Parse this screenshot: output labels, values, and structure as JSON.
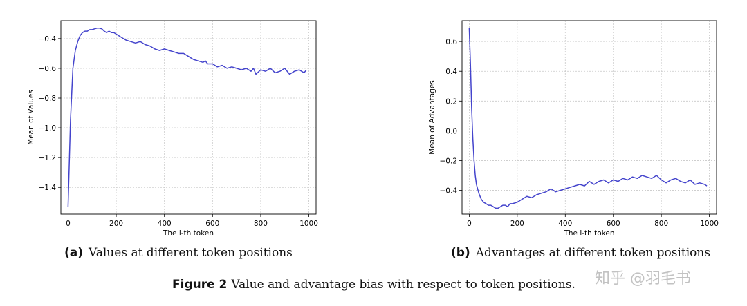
{
  "chart_data": [
    {
      "type": "line",
      "xlabel": "The i-th token",
      "ylabel": "Mean of Values",
      "xlim": [
        -30,
        1030
      ],
      "ylim": [
        -1.58,
        -0.28
      ],
      "xticks": [
        0,
        200,
        400,
        600,
        800,
        1000
      ],
      "yticks": [
        -1.4,
        -1.2,
        -1.0,
        -0.8,
        -0.6,
        -0.4
      ],
      "grid": true,
      "color": "#4444cc",
      "x": [
        0,
        10,
        20,
        30,
        40,
        50,
        60,
        70,
        80,
        90,
        100,
        110,
        120,
        130,
        140,
        150,
        160,
        170,
        180,
        190,
        200,
        220,
        240,
        260,
        280,
        300,
        320,
        340,
        360,
        380,
        400,
        420,
        440,
        460,
        480,
        500,
        520,
        540,
        560,
        570,
        580,
        600,
        620,
        640,
        660,
        680,
        700,
        720,
        740,
        760,
        770,
        780,
        800,
        820,
        840,
        860,
        880,
        900,
        920,
        940,
        960,
        980,
        990
      ],
      "y": [
        -1.53,
        -0.95,
        -0.6,
        -0.48,
        -0.42,
        -0.38,
        -0.36,
        -0.35,
        -0.35,
        -0.34,
        -0.34,
        -0.335,
        -0.33,
        -0.33,
        -0.335,
        -0.35,
        -0.36,
        -0.35,
        -0.36,
        -0.36,
        -0.37,
        -0.39,
        -0.41,
        -0.42,
        -0.43,
        -0.42,
        -0.44,
        -0.45,
        -0.47,
        -0.48,
        -0.47,
        -0.48,
        -0.49,
        -0.5,
        -0.5,
        -0.52,
        -0.54,
        -0.55,
        -0.56,
        -0.55,
        -0.57,
        -0.57,
        -0.59,
        -0.58,
        -0.6,
        -0.59,
        -0.6,
        -0.61,
        -0.6,
        -0.62,
        -0.6,
        -0.64,
        -0.61,
        -0.62,
        -0.6,
        -0.63,
        -0.62,
        -0.6,
        -0.64,
        -0.62,
        -0.61,
        -0.63,
        -0.61
      ]
    },
    {
      "type": "line",
      "xlabel": "The i-th token",
      "ylabel": "Mean of Advantages",
      "xlim": [
        -30,
        1030
      ],
      "ylim": [
        -0.56,
        0.74
      ],
      "xticks": [
        0,
        200,
        400,
        600,
        800,
        1000
      ],
      "yticks": [
        -0.4,
        -0.2,
        0.0,
        0.2,
        0.4,
        0.6
      ],
      "grid": true,
      "color": "#4444cc",
      "x": [
        0,
        5,
        10,
        15,
        20,
        25,
        30,
        40,
        50,
        60,
        70,
        80,
        90,
        100,
        110,
        120,
        130,
        140,
        150,
        160,
        170,
        180,
        200,
        220,
        240,
        260,
        280,
        300,
        320,
        340,
        360,
        380,
        400,
        420,
        440,
        460,
        480,
        500,
        520,
        540,
        560,
        580,
        600,
        620,
        640,
        660,
        680,
        700,
        720,
        740,
        760,
        780,
        800,
        820,
        840,
        860,
        880,
        900,
        920,
        940,
        960,
        980,
        990
      ],
      "y": [
        0.69,
        0.45,
        0.15,
        -0.05,
        -0.2,
        -0.3,
        -0.36,
        -0.42,
        -0.46,
        -0.48,
        -0.49,
        -0.5,
        -0.5,
        -0.51,
        -0.52,
        -0.52,
        -0.51,
        -0.5,
        -0.5,
        -0.51,
        -0.49,
        -0.49,
        -0.48,
        -0.46,
        -0.44,
        -0.45,
        -0.43,
        -0.42,
        -0.41,
        -0.39,
        -0.41,
        -0.4,
        -0.39,
        -0.38,
        -0.37,
        -0.36,
        -0.37,
        -0.34,
        -0.36,
        -0.34,
        -0.33,
        -0.35,
        -0.33,
        -0.34,
        -0.32,
        -0.33,
        -0.31,
        -0.32,
        -0.3,
        -0.31,
        -0.32,
        -0.3,
        -0.33,
        -0.35,
        -0.33,
        -0.32,
        -0.34,
        -0.35,
        -0.33,
        -0.36,
        -0.35,
        -0.36,
        -0.37
      ]
    }
  ],
  "subcaptions": [
    {
      "label": "(a)",
      "text": "Values at different token positions"
    },
    {
      "label": "(b)",
      "text": "Advantages at different token positions"
    }
  ],
  "caption": {
    "label": "Figure 2",
    "text": "Value and advantage bias with respect to token positions."
  },
  "watermark": "知乎 @羽毛书"
}
